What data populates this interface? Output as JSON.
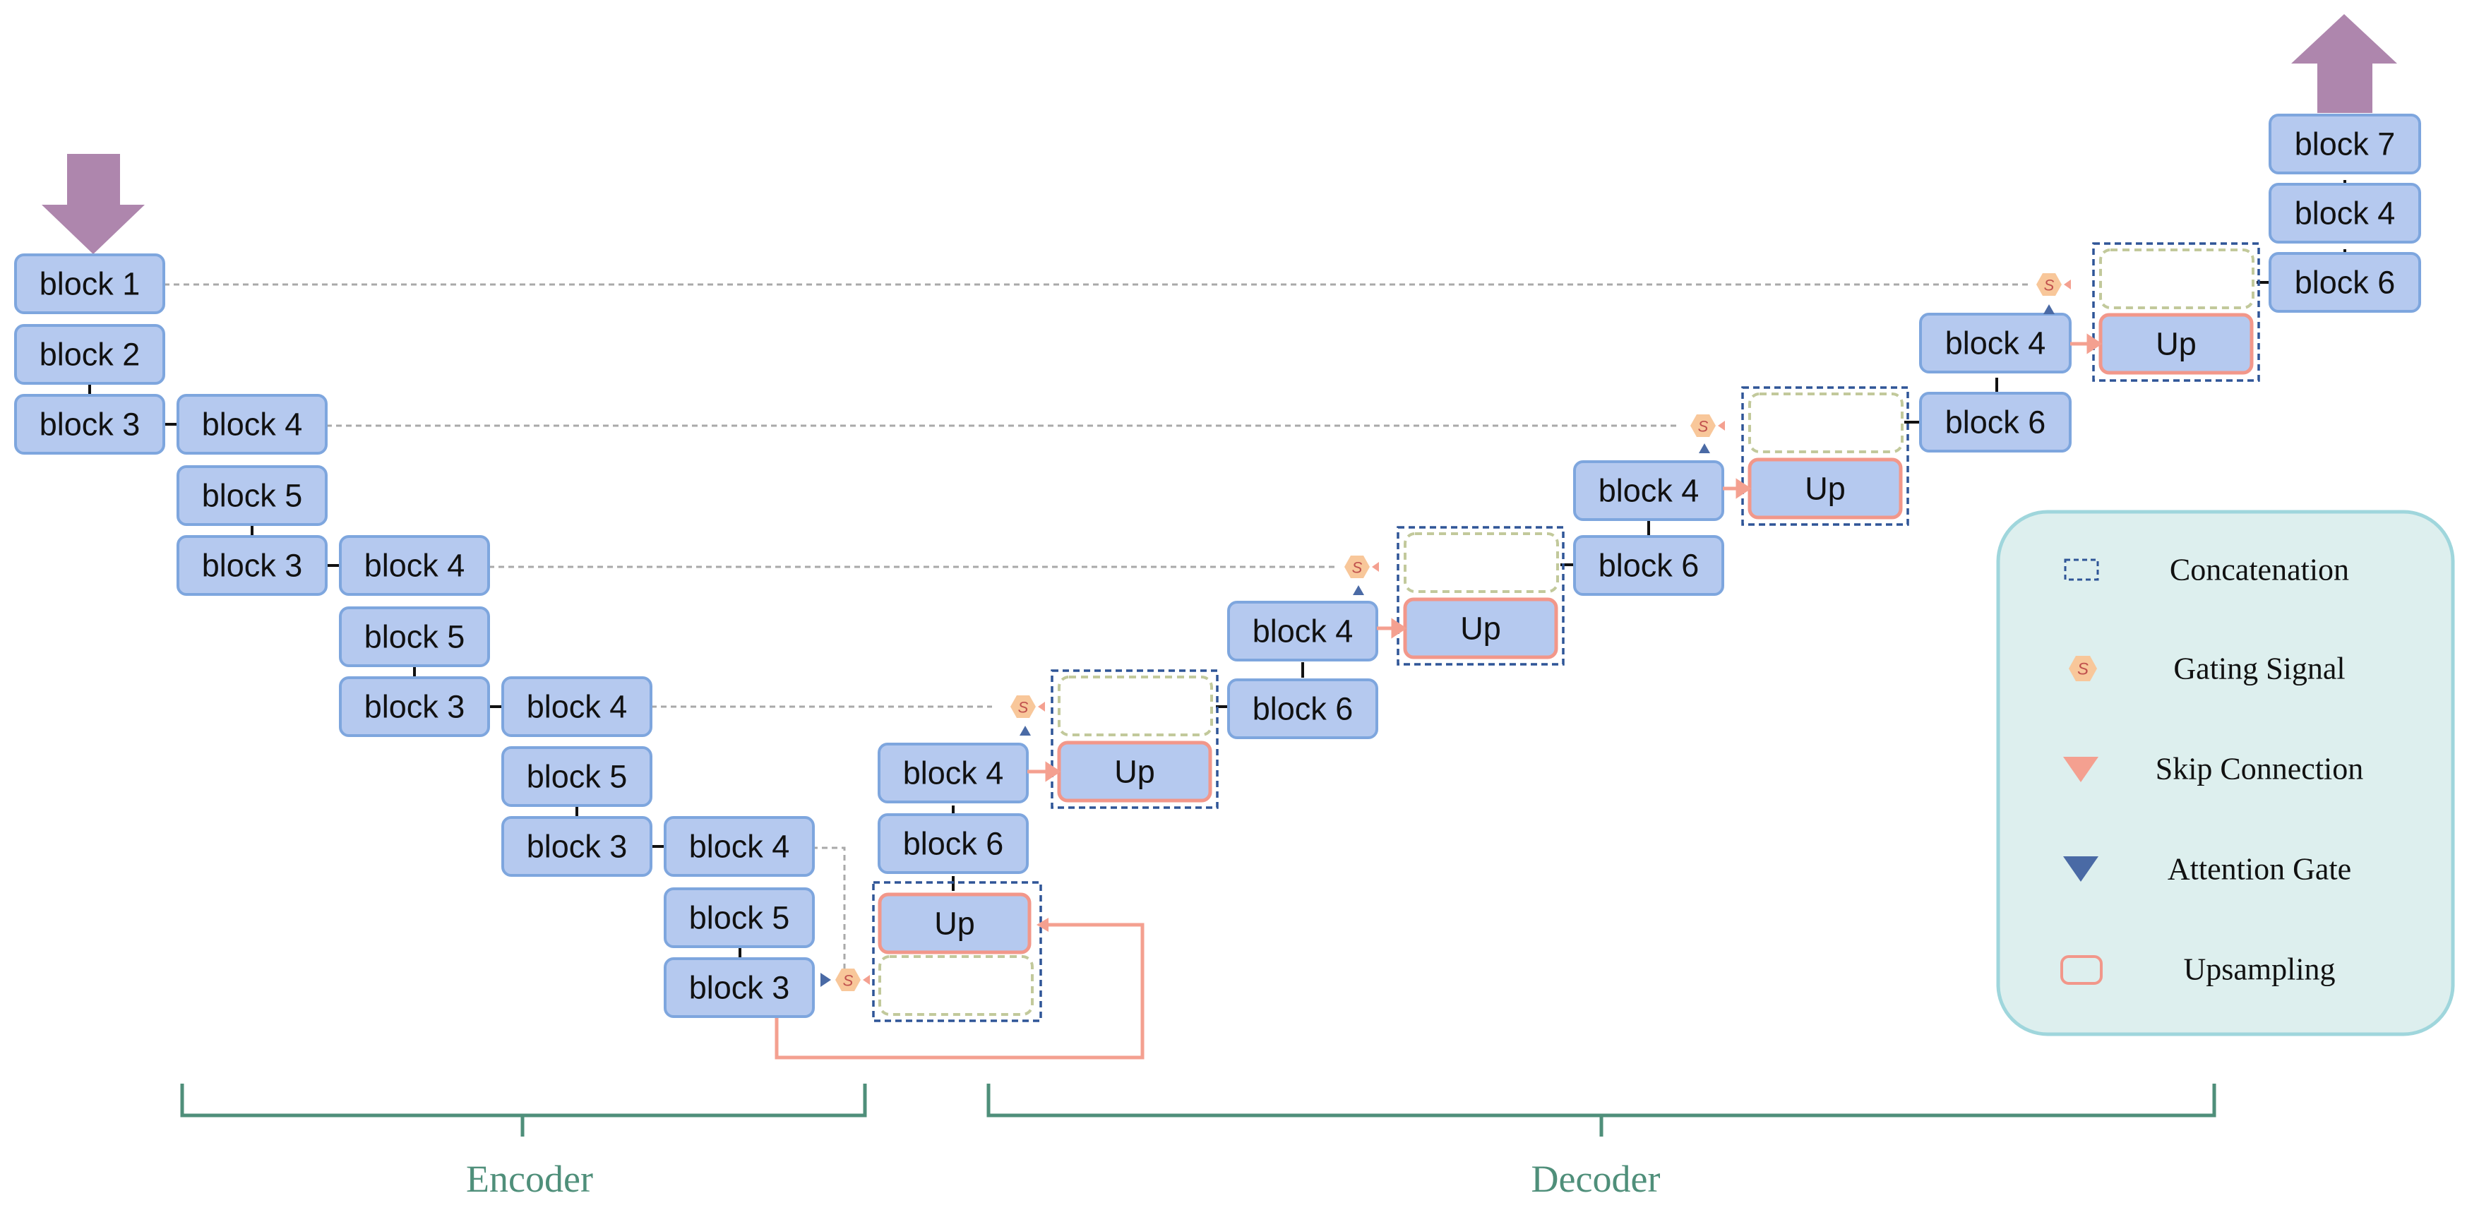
{
  "blocks": {
    "enc_b1": "block 1",
    "enc_b2": "block 2",
    "enc_b3a": "block 3",
    "enc_b4a": "block 4",
    "enc_b5a": "block 5",
    "enc_b3b": "block 3",
    "enc_b4b": "block 4",
    "enc_b5b": "block 5",
    "enc_b3c": "block 3",
    "enc_b4c": "block 4",
    "enc_b5c": "block 5",
    "enc_b3d": "block 3",
    "enc_b4d": "block 4",
    "enc_b5d": "block 5",
    "enc_b3e": "block 3",
    "dec_up1": "Up",
    "dec_b6a": "block 6",
    "dec_b4a": "block 4",
    "dec_up2": "Up",
    "dec_b6b": "block 6",
    "dec_b4b": "block 4",
    "dec_up3": "Up",
    "dec_b6c": "block 6",
    "dec_b4c": "block 4",
    "dec_up4": "Up",
    "dec_b6d": "block 6",
    "dec_b4d": "block 4",
    "dec_up5": "Up",
    "dec_b6e": "block 6",
    "dec_b4e": "block 4",
    "dec_b7": "block 7"
  },
  "legend": {
    "concatenation": "Concatenation",
    "gating_signal": "Gating Signal",
    "skip_connection": "Skip Connection",
    "attention_gate": "Attention Gate",
    "upsampling": "Upsampling"
  },
  "sections": {
    "encoder": "Encoder",
    "decoder": "Decoder"
  },
  "gate_glyph": "S",
  "colors": {
    "block_fill": "#b5c9ef",
    "block_stroke": "#7ea6de",
    "up_stroke": "#f2978a",
    "concat_stroke": "#2f5597",
    "gating_fill": "#f8c79a",
    "skip_color": "#f4a090",
    "attention_color": "#4a6aa5",
    "arrow_color": "#ae86ad",
    "legend_fill": "#ddefee",
    "legend_stroke": "#9fd6dc",
    "brace_color": "#4f8f7a"
  }
}
